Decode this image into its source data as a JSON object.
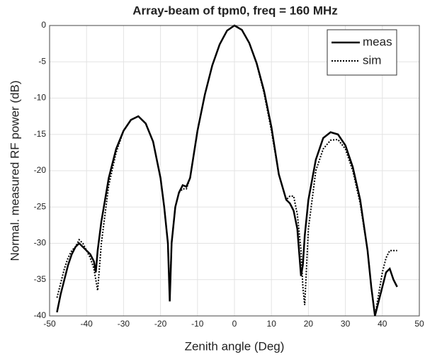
{
  "chart_data": {
    "type": "line",
    "title": "Array-beam of tpm0, freq = 160 MHz",
    "x_label": "Zenith angle (Deg)",
    "y_label": "Normal. measured RF power (dB)",
    "x": [
      -48,
      -47,
      -46,
      -45,
      -44,
      -43,
      -42,
      -41,
      -40,
      -39,
      -38,
      -37.5,
      -37,
      -36,
      -34,
      -32,
      -30,
      -28,
      -26,
      -24,
      -22,
      -20,
      -19,
      -18,
      -17.5,
      -17,
      -16,
      -15,
      -14,
      -13,
      -12,
      -10,
      -8,
      -6,
      -4,
      -2,
      0,
      2,
      4,
      6,
      8,
      10,
      12,
      14,
      15,
      16,
      17,
      18,
      18.5,
      19,
      20,
      22,
      24,
      26,
      28,
      30,
      32,
      34,
      36,
      37,
      38,
      40,
      41,
      42,
      43,
      44
    ],
    "series": [
      {
        "name": "meas",
        "color": "#000000",
        "dash": "solid",
        "values": [
          -39.5,
          -37,
          -35,
          -33,
          -31.5,
          -30.5,
          -30,
          -30.5,
          -31,
          -31.5,
          -32.5,
          -34,
          -31,
          -27,
          -21,
          -17,
          -14.5,
          -13,
          -12.5,
          -13.5,
          -16,
          -21,
          -25,
          -30,
          -38,
          -30,
          -25,
          -23,
          -22,
          -22.2,
          -21,
          -14.5,
          -9.5,
          -5.5,
          -2.6,
          -0.7,
          0,
          -0.6,
          -2.4,
          -5.2,
          -9,
          -14,
          -20.5,
          -24,
          -24.5,
          -25.5,
          -28,
          -34.5,
          -33,
          -29,
          -24,
          -18.5,
          -15.5,
          -14.7,
          -15,
          -16.5,
          -19.5,
          -24,
          -31,
          -36,
          -40,
          -36,
          -34,
          -33.5,
          -35,
          -36
        ]
      },
      {
        "name": "sim",
        "color": "#000000",
        "dash": "dotted",
        "values": [
          -37.5,
          -35.5,
          -33.5,
          -32,
          -31,
          -30.5,
          -29.5,
          -30,
          -31,
          -32,
          -33.5,
          -35,
          -36.5,
          -30,
          -22,
          -17.5,
          -14.5,
          -13,
          -12.5,
          -13.5,
          -16,
          -21,
          -25,
          -30,
          -37.5,
          -30,
          -25,
          -23,
          -22.5,
          -22.5,
          -21,
          -14.5,
          -9.5,
          -5.5,
          -2.6,
          -0.7,
          0,
          -0.6,
          -2.4,
          -5.3,
          -9.3,
          -14.5,
          -20.5,
          -24,
          -23.5,
          -23.5,
          -26,
          -31,
          -36,
          -38.5,
          -28,
          -20,
          -17,
          -15.8,
          -15.7,
          -17,
          -20,
          -24.5,
          -31,
          -36,
          -40,
          -34,
          -32,
          -31,
          -31,
          -31
        ]
      }
    ],
    "xlim": [
      -50,
      50
    ],
    "xticks": [
      -50,
      -40,
      -30,
      -20,
      -10,
      0,
      10,
      20,
      30,
      40,
      50
    ],
    "ylim": [
      -40,
      0
    ],
    "yticks": [
      -40,
      -35,
      -30,
      -25,
      -20,
      -15,
      -10,
      -5,
      0
    ],
    "grid": true,
    "legend": "upper right"
  }
}
